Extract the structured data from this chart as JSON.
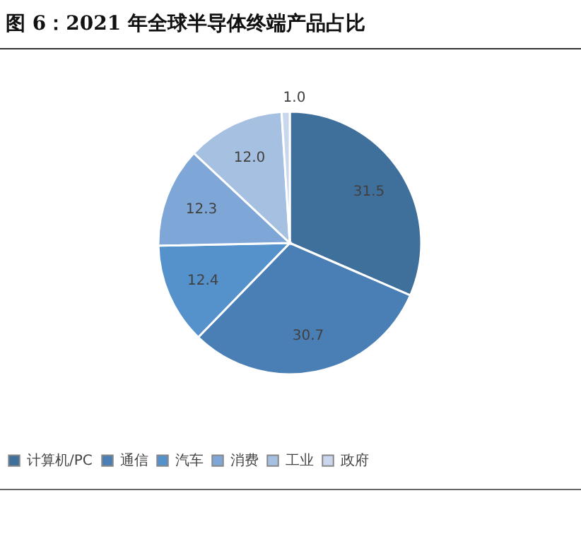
{
  "chart_data": {
    "type": "pie",
    "title": "图 6：2021 年全球半导体终端产品占比",
    "categories": [
      "计算机/PC",
      "通信",
      "汽车",
      "消费",
      "工业",
      "政府"
    ],
    "values": [
      31.5,
      30.7,
      12.4,
      12.3,
      12.0,
      1.0
    ],
    "value_labels": [
      "31.5",
      "30.7",
      "12.4",
      "12.3",
      "12.0",
      "1.0"
    ],
    "colors": [
      "#3f6f9b",
      "#4a7fb5",
      "#5592cc",
      "#7ea6d7",
      "#a6c0e2",
      "#c9d7ec"
    ],
    "legend": "bottom"
  }
}
